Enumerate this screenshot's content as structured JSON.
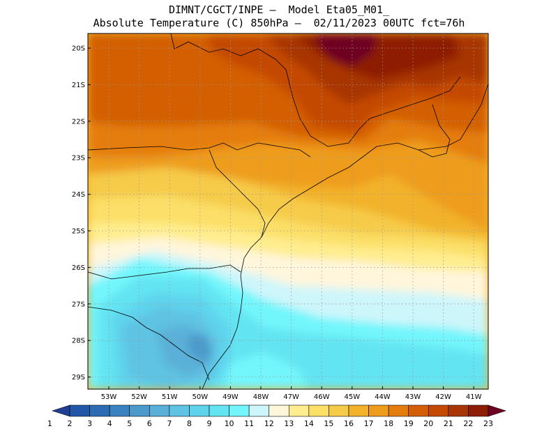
{
  "header": {
    "line1": "DIMNT/CGCT/INPE –  Model Eta05_M01_",
    "line2": "Absolute Temperature (C) 850hPa –  02/11/2023 00UTC fct=76h"
  },
  "map": {
    "lat_labels": [
      "20S",
      "21S",
      "22S",
      "23S",
      "24S",
      "25S",
      "26S",
      "27S",
      "28S",
      "29S"
    ],
    "lon_labels": [
      "53W",
      "52W",
      "51W",
      "50W",
      "49W",
      "48W",
      "47W",
      "46W",
      "45W",
      "44W",
      "43W",
      "42W",
      "41W"
    ],
    "grid": true,
    "background_level": 16,
    "regions": [
      {
        "level": 19,
        "area": "northwest"
      },
      {
        "level": 21,
        "area": "north-central"
      },
      {
        "level": 23,
        "area": "north peak"
      },
      {
        "level": 14,
        "area": "center band"
      },
      {
        "level": 11,
        "area": "south-central band"
      },
      {
        "level": 8,
        "area": "southwest"
      },
      {
        "level": 6,
        "area": "southwest core"
      },
      {
        "level": 10,
        "area": "south coast"
      },
      {
        "level": 9,
        "area": "southeast ocean"
      }
    ]
  },
  "colorbar": {
    "labels": [
      "1",
      "2",
      "3",
      "4",
      "5",
      "6",
      "7",
      "8",
      "9",
      "10",
      "11",
      "12",
      "13",
      "14",
      "15",
      "16",
      "17",
      "18",
      "19",
      "20",
      "21",
      "22",
      "23"
    ],
    "colors": [
      "#1f3f96",
      "#2257a8",
      "#2b6cb4",
      "#3a82c0",
      "#4b9acb",
      "#5ab0d8",
      "#5fc3e3",
      "#5fd3ec",
      "#63e4f2",
      "#72f6fc",
      "#cdf6fb",
      "#fff6dc",
      "#ffed8f",
      "#fbdf67",
      "#f6cb4a",
      "#f2b22b",
      "#ee9c1c",
      "#e47d0e",
      "#d35e06",
      "#c44a03",
      "#a83605",
      "#8e1d05",
      "#6e0424"
    ]
  }
}
